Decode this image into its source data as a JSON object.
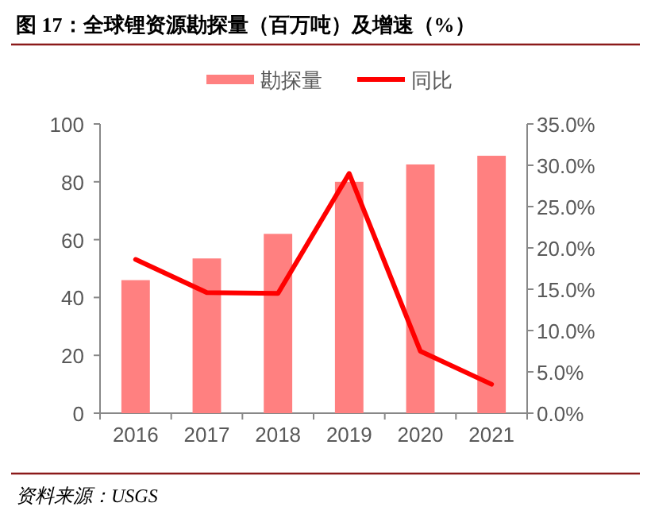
{
  "chart_data": {
    "type": "bar",
    "title": "图 17：全球锂资源勘探量（百万吨）及增速（%）",
    "categories": [
      "2016",
      "2017",
      "2018",
      "2019",
      "2020",
      "2021"
    ],
    "series": [
      {
        "name": "勘探量",
        "color": "#ff8080",
        "values": [
          46,
          53.5,
          62,
          80,
          86,
          89
        ]
      },
      {
        "name": "同比",
        "type": "line",
        "axis": "y2",
        "color": "#ff0000",
        "values": [
          18.6,
          14.6,
          14.5,
          29.0,
          7.5,
          3.5
        ]
      }
    ],
    "ylim": [
      0,
      100
    ],
    "yticks": [
      0,
      20,
      40,
      60,
      80,
      100
    ],
    "y2lim": [
      0,
      35
    ],
    "y2ticks": [
      {
        "value": 0,
        "label": "0.0%"
      },
      {
        "value": 5,
        "label": "5.0%"
      },
      {
        "value": 10,
        "label": "10.0%"
      },
      {
        "value": 15,
        "label": "15.0%"
      },
      {
        "value": 20,
        "label": "20.0%"
      },
      {
        "value": 25,
        "label": "25.0%"
      },
      {
        "value": 30,
        "label": "30.0%"
      },
      {
        "value": 35,
        "label": "35.0%"
      }
    ],
    "grid": false,
    "legend": "top",
    "annotations": [
      "资料来源：USGS"
    ]
  }
}
